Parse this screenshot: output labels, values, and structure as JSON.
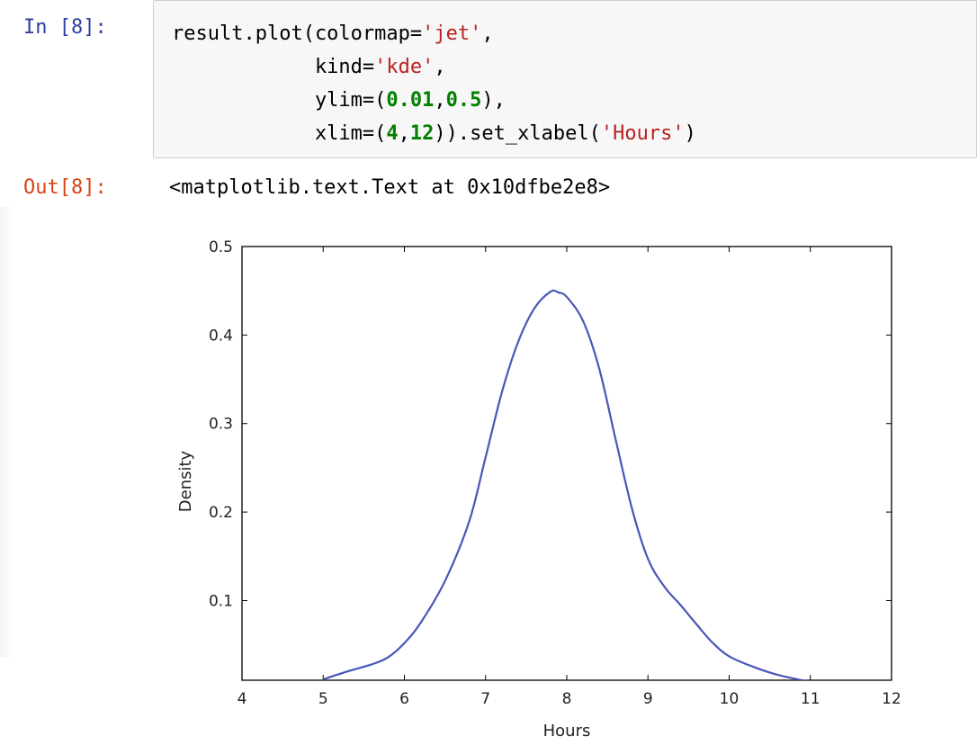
{
  "input_cell": {
    "prompt": "In [8]:",
    "code_lines": [
      [
        {
          "t": "result.plot(colormap=",
          "c": ""
        },
        {
          "t": "'jet'",
          "c": "str"
        },
        {
          "t": ",",
          "c": ""
        }
      ],
      [
        {
          "t": "            kind=",
          "c": ""
        },
        {
          "t": "'kde'",
          "c": "str"
        },
        {
          "t": ",",
          "c": ""
        }
      ],
      [
        {
          "t": "            ylim=(",
          "c": ""
        },
        {
          "t": "0.01",
          "c": "num"
        },
        {
          "t": ",",
          "c": ""
        },
        {
          "t": "0.5",
          "c": "num"
        },
        {
          "t": "),",
          "c": ""
        }
      ],
      [
        {
          "t": "            xlim=(",
          "c": ""
        },
        {
          "t": "4",
          "c": "num"
        },
        {
          "t": ",",
          "c": ""
        },
        {
          "t": "12",
          "c": "num"
        },
        {
          "t": ")).set_xlabel(",
          "c": ""
        },
        {
          "t": "'Hours'",
          "c": "str"
        },
        {
          "t": ")",
          "c": ""
        }
      ]
    ]
  },
  "output_cell": {
    "prompt": "Out[8]:",
    "text": "<matplotlib.text.Text at 0x10dfbe2e8>"
  },
  "colors": {
    "in_prompt": "#303f9f",
    "out_prompt": "#d84315",
    "string": "#ba2121",
    "number": "#008000",
    "line": "#4a56b8"
  },
  "chart_data": {
    "type": "line",
    "xlabel": "Hours",
    "ylabel": "Density",
    "xlim": [
      4,
      12
    ],
    "ylim": [
      0.01,
      0.5
    ],
    "xticks": [
      4,
      5,
      6,
      7,
      8,
      9,
      10,
      11,
      12
    ],
    "yticks": [
      0.1,
      0.2,
      0.3,
      0.4,
      0.5
    ],
    "grid": false,
    "series": [
      {
        "x": [
          5.0,
          5.3,
          5.6,
          5.8,
          6.0,
          6.2,
          6.5,
          6.8,
          7.0,
          7.2,
          7.4,
          7.6,
          7.8,
          7.9,
          8.0,
          8.2,
          8.4,
          8.6,
          8.8,
          9.0,
          9.2,
          9.4,
          9.6,
          9.8,
          10.0,
          10.3,
          10.6,
          10.9,
          11.1
        ],
        "y": [
          0.011,
          0.02,
          0.028,
          0.036,
          0.052,
          0.075,
          0.122,
          0.19,
          0.262,
          0.335,
          0.392,
          0.43,
          0.449,
          0.448,
          0.443,
          0.416,
          0.362,
          0.283,
          0.205,
          0.147,
          0.116,
          0.095,
          0.073,
          0.052,
          0.037,
          0.025,
          0.016,
          0.01,
          0.007
        ]
      }
    ]
  }
}
